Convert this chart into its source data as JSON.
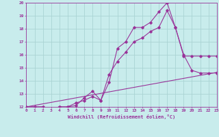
{
  "xlabel": "Windchill (Refroidissement éolien,°C)",
  "bg_color": "#c8ecec",
  "grid_color": "#aad4d4",
  "line_color": "#993399",
  "xlim": [
    0,
    23
  ],
  "ylim": [
    12,
    20
  ],
  "xticks": [
    0,
    1,
    2,
    3,
    4,
    5,
    6,
    7,
    8,
    9,
    10,
    11,
    12,
    13,
    14,
    15,
    16,
    17,
    18,
    19,
    20,
    21,
    22,
    23
  ],
  "yticks": [
    12,
    13,
    14,
    15,
    16,
    17,
    18,
    19,
    20
  ],
  "line1_x": [
    0,
    1,
    2,
    3,
    4,
    5,
    6,
    7,
    8,
    9,
    10,
    11,
    12,
    13,
    14,
    15,
    16,
    17,
    18,
    19,
    20,
    21,
    22,
    23
  ],
  "line1_y": [
    12,
    12,
    12,
    11.85,
    12,
    12,
    12.3,
    12.5,
    12.8,
    12.5,
    13.9,
    16.5,
    17.0,
    18.1,
    18.1,
    18.5,
    19.3,
    20.0,
    18.1,
    16.0,
    14.8,
    14.6,
    14.6,
    14.6
  ],
  "line2_x": [
    0,
    1,
    2,
    3,
    4,
    5,
    6,
    7,
    8,
    9,
    10,
    11,
    12,
    13,
    14,
    15,
    16,
    17,
    18,
    19,
    20,
    21,
    22,
    23
  ],
  "line2_y": [
    12,
    12,
    12,
    11.85,
    12,
    12,
    12.1,
    12.7,
    13.2,
    12.5,
    14.5,
    15.5,
    16.2,
    17.0,
    17.3,
    17.8,
    18.1,
    19.4,
    18.1,
    15.9,
    15.9,
    15.9,
    15.9,
    15.9
  ],
  "line3_x": [
    0,
    23
  ],
  "line3_y": [
    12,
    14.65
  ]
}
